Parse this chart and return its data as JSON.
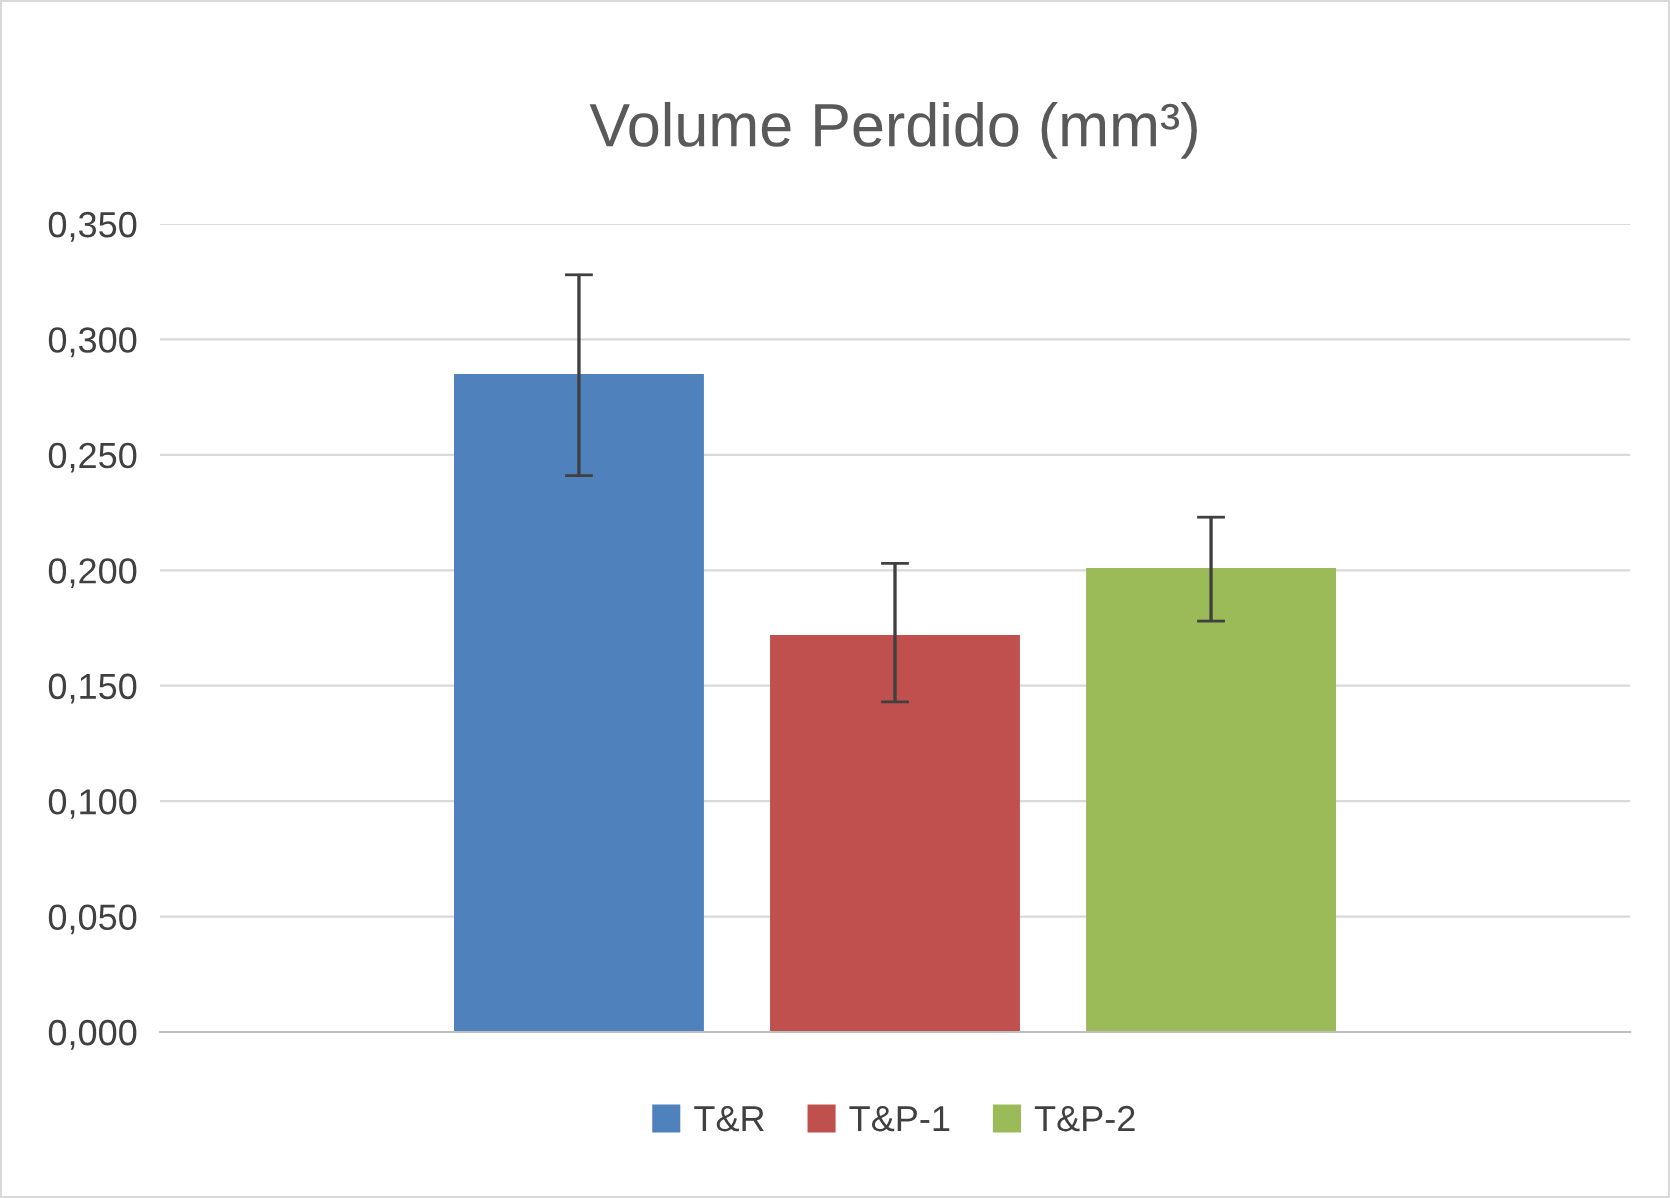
{
  "chart_data": {
    "type": "bar",
    "title": "Volume Perdido (mm³)",
    "categories": [
      null
    ],
    "series": [
      {
        "name": "T&R",
        "color": "#4f81bd",
        "values": [
          0.285
        ],
        "errors": [
          [
            0.241,
            0.328
          ]
        ]
      },
      {
        "name": "T&P-1",
        "color": "#c0504d",
        "values": [
          0.172
        ],
        "errors": [
          [
            0.143,
            0.203
          ]
        ]
      },
      {
        "name": "T&P-2",
        "color": "#9bbb59",
        "values": [
          0.201
        ],
        "errors": [
          [
            0.178,
            0.223
          ]
        ]
      }
    ],
    "ylim": [
      0,
      0.35
    ],
    "yticks": [
      {
        "value": 0,
        "label": "0,000"
      },
      {
        "value": 0.05,
        "label": "0,050"
      },
      {
        "value": 0.1,
        "label": "0,100"
      },
      {
        "value": 0.15,
        "label": "0,150"
      },
      {
        "value": 0.2,
        "label": "0,200"
      },
      {
        "value": 0.25,
        "label": "0,250"
      },
      {
        "value": 0.3,
        "label": "0,300"
      },
      {
        "value": 0.35,
        "label": "0,350"
      }
    ],
    "grid": "y",
    "legend": "bottom"
  }
}
